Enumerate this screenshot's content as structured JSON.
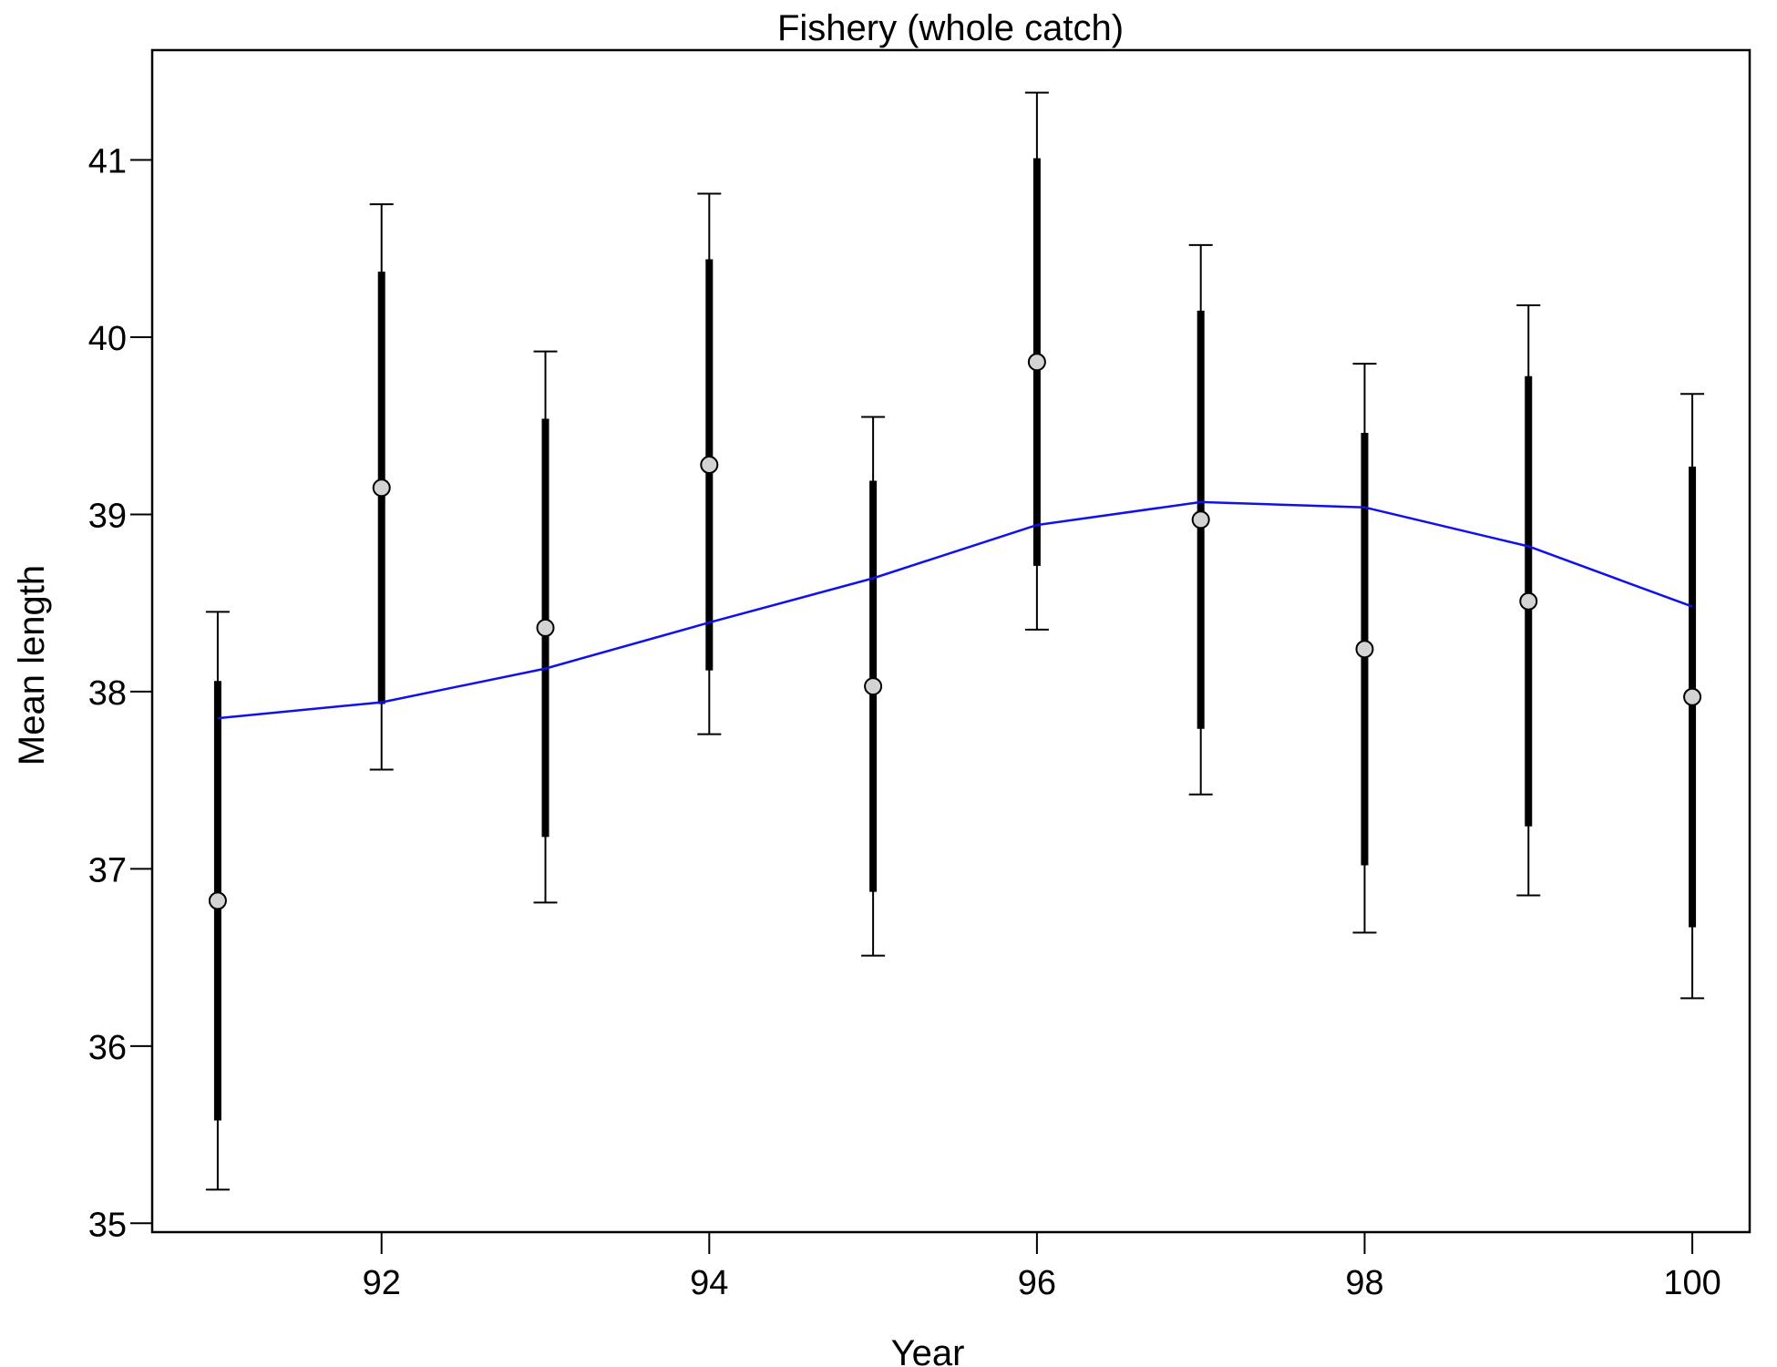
{
  "chart_data": {
    "type": "scatter",
    "title": "Fishery (whole catch)",
    "xlabel": "Year",
    "ylabel": "Mean length",
    "xlim": [
      90.6,
      100.35
    ],
    "ylim": [
      34.95,
      41.62
    ],
    "x_ticks": [
      92,
      94,
      96,
      98,
      100
    ],
    "x_tick_labels": [
      "92",
      "94",
      "96",
      "98",
      "100"
    ],
    "y_ticks": [
      35,
      36,
      37,
      38,
      39,
      40,
      41
    ],
    "y_tick_labels": [
      "35",
      "36",
      "37",
      "38",
      "39",
      "40",
      "41"
    ],
    "grid": false,
    "legend": "none",
    "colors": {
      "fit_line": "#1010ee",
      "observed_fill": "#d3d3d3",
      "interval": "#000000"
    },
    "series": [
      {
        "kind": "observed_with_intervals",
        "x": [
          91,
          92,
          93,
          94,
          95,
          96,
          97,
          98,
          99,
          100
        ],
        "y": [
          36.82,
          39.15,
          38.36,
          39.28,
          38.03,
          39.86,
          38.97,
          38.24,
          38.51,
          37.97
        ],
        "inner_low": [
          35.58,
          37.93,
          37.18,
          38.12,
          36.87,
          38.71,
          37.79,
          37.02,
          37.24,
          36.67
        ],
        "inner_high": [
          38.06,
          40.37,
          39.54,
          40.44,
          39.19,
          41.01,
          40.15,
          39.46,
          39.78,
          39.27
        ],
        "outer_low": [
          35.19,
          37.56,
          36.81,
          37.76,
          36.51,
          38.35,
          37.42,
          36.64,
          36.85,
          36.27
        ],
        "outer_high": [
          38.45,
          40.75,
          39.92,
          40.81,
          39.55,
          41.38,
          40.52,
          39.85,
          40.18,
          39.68
        ]
      },
      {
        "kind": "fitted_line",
        "x": [
          91,
          92,
          93,
          94,
          95,
          96,
          97,
          98,
          99,
          100
        ],
        "y": [
          37.85,
          37.94,
          38.13,
          38.39,
          38.64,
          38.94,
          39.07,
          39.04,
          38.82,
          38.48
        ]
      }
    ]
  }
}
